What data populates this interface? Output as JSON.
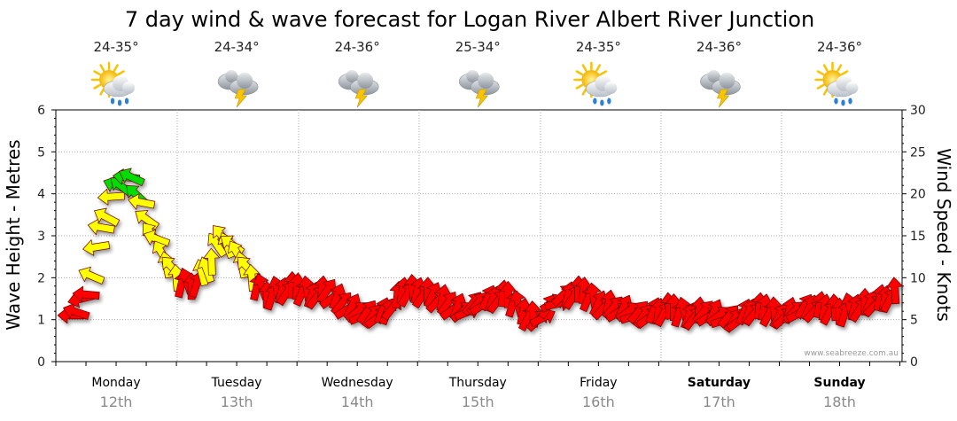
{
  "chart_data": {
    "type": "line",
    "title": "7 day wind & wave forecast for Logan River Albert River Junction",
    "ylabel_left": "Wave Height - Metres",
    "ylabel_right": "Wind Speed - Knots",
    "ylim_left": [
      0,
      6
    ],
    "ylim_right": [
      0,
      30
    ],
    "yticks_left": [
      "0",
      "1",
      "2",
      "3",
      "4",
      "5",
      "6"
    ],
    "yticks_right": [
      "0",
      "5",
      "10",
      "15",
      "20",
      "25",
      "30"
    ],
    "days": [
      {
        "day": "Monday",
        "date": "12th",
        "temp": "24-35°",
        "weather": "sun-cloud-rain-icon",
        "weekend": false
      },
      {
        "day": "Tuesday",
        "date": "13th",
        "temp": "24-34°",
        "weather": "thunderstorm-icon",
        "weekend": false
      },
      {
        "day": "Wednesday",
        "date": "14th",
        "temp": "24-36°",
        "weather": "thunderstorm-icon",
        "weekend": false
      },
      {
        "day": "Thursday",
        "date": "15th",
        "temp": "25-34°",
        "weather": "thunderstorm-icon",
        "weekend": false
      },
      {
        "day": "Friday",
        "date": "16th",
        "temp": "24-35°",
        "weather": "sun-cloud-rain-icon",
        "weekend": false
      },
      {
        "day": "Saturday",
        "date": "17th",
        "temp": "24-36°",
        "weather": "thunderstorm-icon",
        "weekend": true
      },
      {
        "day": "Sunday",
        "date": "18th",
        "temp": "24-36°",
        "weather": "sun-cloud-rain-icon",
        "weekend": true
      }
    ],
    "series": [
      {
        "name": "Wind Speed (knots)",
        "x_unit": "hours from Monday 00:00",
        "x": [
          0,
          3,
          6,
          9,
          12,
          15,
          18,
          21,
          24,
          27,
          30,
          33,
          36,
          39,
          42,
          45,
          48,
          51,
          54,
          57,
          60,
          63,
          66,
          69,
          72,
          75,
          78,
          81,
          84,
          87,
          90,
          93,
          96,
          99,
          102,
          105,
          108,
          111,
          114,
          117,
          120,
          123,
          126,
          129,
          132,
          135,
          138,
          141,
          144,
          147,
          150,
          153,
          156,
          159,
          162,
          165,
          168
        ],
        "values": [
          6,
          5.5,
          8,
          16,
          21,
          22,
          17,
          13,
          10,
          9,
          11,
          15,
          13,
          10,
          8,
          8.5,
          9,
          8,
          8.5,
          7,
          6,
          5.5,
          6,
          8.5,
          8.5,
          8,
          7,
          6,
          7,
          7.5,
          8,
          6,
          5,
          7,
          8,
          8.5,
          7,
          6.5,
          6,
          5.5,
          6,
          6.5,
          5.5,
          6,
          5.5,
          5,
          6,
          6.5,
          5.5,
          6,
          6.5,
          6.5,
          6,
          6.5,
          7,
          7.5,
          8.5
        ],
        "speed_ranges": [
          {
            "range": "below 10 knots",
            "color": "#ff0000"
          },
          {
            "range": "10-20 knots",
            "color": "#ffff00"
          },
          {
            "range": "20 knots and above",
            "color": "#00dd00"
          }
        ]
      }
    ],
    "credit": "www.seabreeze.com.au"
  }
}
